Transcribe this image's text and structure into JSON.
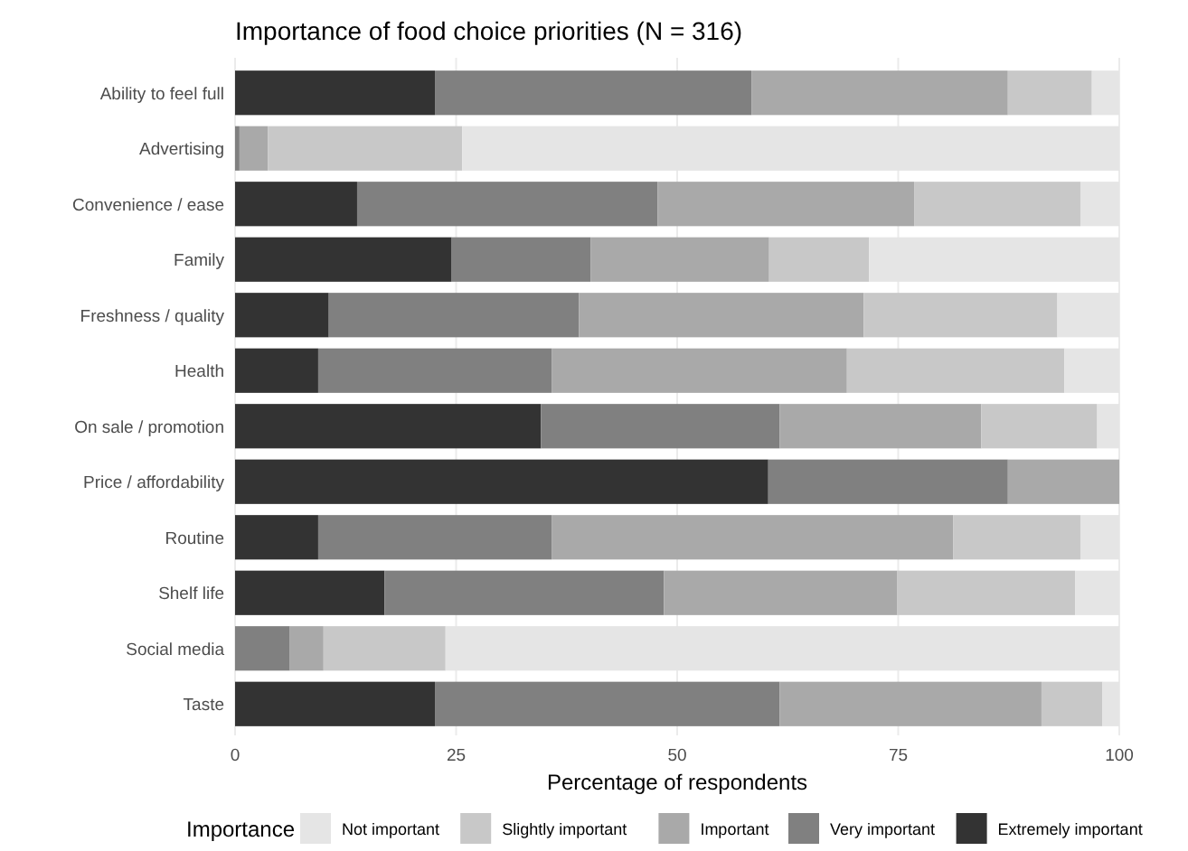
{
  "chart_data": {
    "type": "bar",
    "orientation": "horizontal",
    "stacked": true,
    "title": "Importance of food choice priorities (N = 316)",
    "xlabel": "Percentage of respondents",
    "legend_title": "Importance",
    "legend": "bottom",
    "grid": "x",
    "categories": [
      "Ability to feel full",
      "Advertising",
      "Convenience / ease",
      "Family",
      "Freshness / quality",
      "Health",
      "On sale / promotion",
      "Price / affordability",
      "Routine",
      "Shelf life",
      "Social media",
      "Taste"
    ],
    "xlim": [
      0,
      100
    ],
    "xticks": [
      0,
      25,
      50,
      75,
      100
    ],
    "series": [
      {
        "name": "Extremely important",
        "color": "#333333",
        "values": [
          22.6,
          0,
          13.8,
          24.5,
          10.6,
          9.4,
          34.6,
          60.3,
          9.4,
          16.9,
          0,
          22.6
        ]
      },
      {
        "name": "Very important",
        "color": "#808080",
        "values": [
          35.8,
          0.5,
          34.0,
          15.7,
          28.3,
          26.4,
          27.0,
          27.1,
          26.4,
          31.6,
          6.2,
          39.0
        ]
      },
      {
        "name": "Important",
        "color": "#a9a9a9",
        "values": [
          29.0,
          3.2,
          29.0,
          20.2,
          32.2,
          33.4,
          22.8,
          12.6,
          45.4,
          26.4,
          3.8,
          29.6
        ]
      },
      {
        "name": "Slightly important",
        "color": "#c8c8c8",
        "values": [
          9.5,
          22.0,
          18.8,
          11.3,
          21.9,
          24.6,
          13.1,
          0,
          14.4,
          20.1,
          13.8,
          6.9
        ]
      },
      {
        "name": "Not important",
        "color": "#e5e5e5",
        "values": [
          3.1,
          74.3,
          4.4,
          28.3,
          7.0,
          6.2,
          2.5,
          0,
          4.4,
          5.0,
          76.2,
          1.9
        ]
      }
    ]
  }
}
